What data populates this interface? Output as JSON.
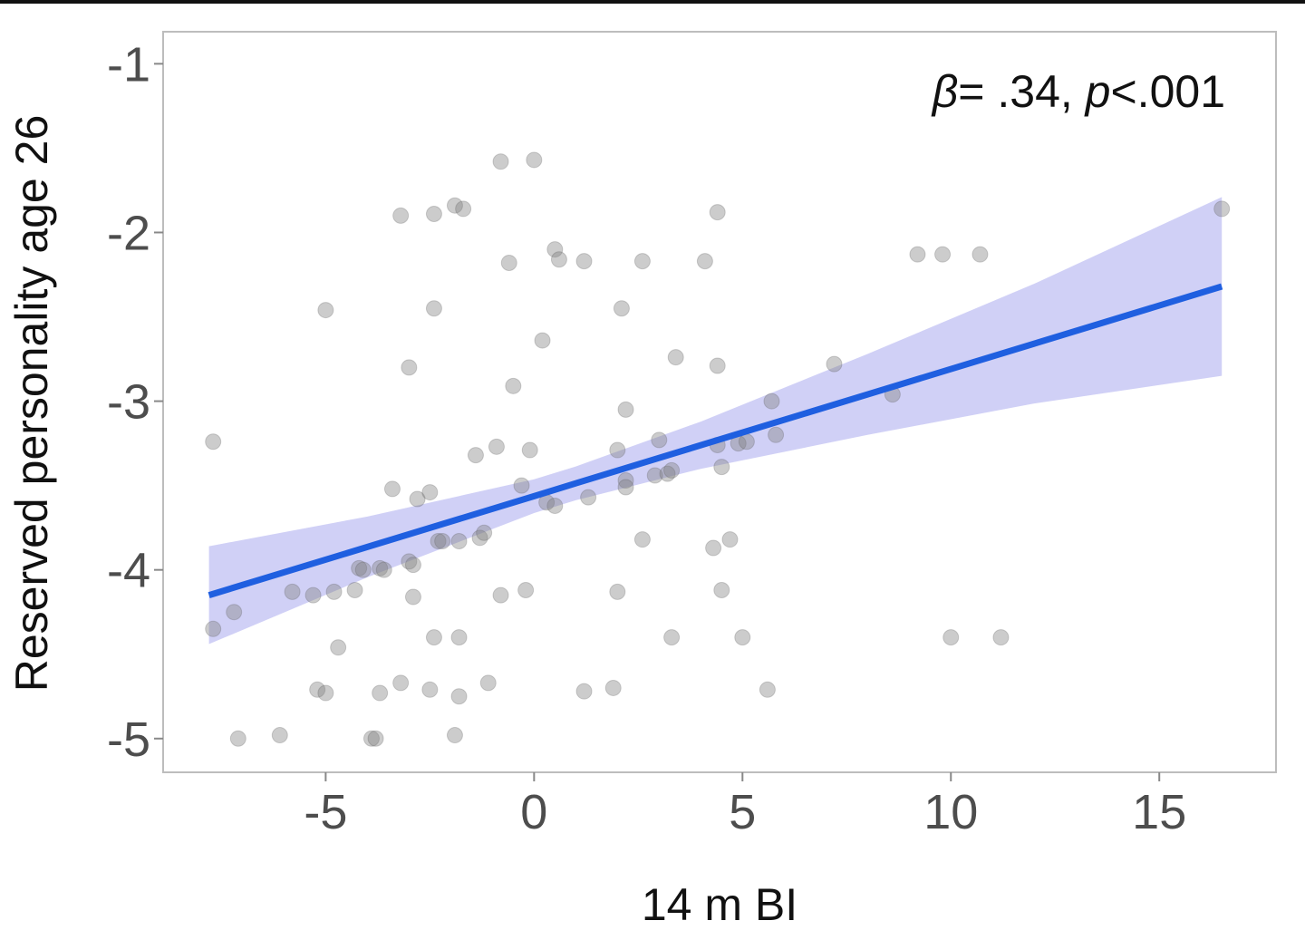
{
  "chart_data": {
    "type": "scatter",
    "title": "",
    "xlabel": "14 m BI",
    "ylabel": "Reserved personality age 26",
    "xlim": [
      -8.9,
      17.8
    ],
    "ylim": [
      -5.2,
      -0.81
    ],
    "xticks": [
      -5,
      0,
      5,
      10,
      15
    ],
    "xtick_labels": [
      "-5",
      "0",
      "5",
      "10",
      "15"
    ],
    "yticks": [
      -1,
      -2,
      -3,
      -4,
      -5
    ],
    "ytick_labels": [
      "-1",
      "-2",
      "-3",
      "-4",
      "-5"
    ],
    "grid": false,
    "annotation": {
      "beta_label": "β",
      "beta_text": "= .34, ",
      "p_label": "p",
      "p_text": "<.001"
    },
    "colors": {
      "points": "#808080",
      "line": "#1f5fe0",
      "ribbon": "#c8c8f5",
      "panel_border": "#bdbdbd"
    },
    "points": {
      "x": [
        -7.7,
        -7.7,
        -7.2,
        -7.1,
        -6.1,
        -5.8,
        -5.3,
        -5.0,
        -5.2,
        -5.0,
        -4.8,
        -4.7,
        -4.3,
        -4.2,
        -4.1,
        -3.7,
        -3.9,
        -3.8,
        -3.7,
        -3.6,
        -3.4,
        -3.2,
        -3.2,
        -3.0,
        -3.0,
        -2.9,
        -2.8,
        -2.9,
        -2.5,
        -2.4,
        -2.4,
        -2.5,
        -2.4,
        -2.3,
        -2.2,
        -1.9,
        -1.7,
        -1.8,
        -1.8,
        -1.8,
        -1.9,
        -1.4,
        -1.3,
        -1.2,
        -1.1,
        -0.9,
        -0.8,
        -0.8,
        -0.6,
        -0.5,
        -0.2,
        -0.3,
        -0.1,
        0.0,
        0.2,
        0.3,
        0.5,
        0.6,
        0.5,
        1.2,
        1.2,
        1.3,
        1.9,
        2.0,
        2.0,
        2.1,
        2.2,
        2.2,
        2.2,
        2.6,
        2.6,
        3.0,
        2.9,
        3.2,
        3.3,
        3.4,
        3.3,
        4.1,
        4.3,
        4.4,
        4.4,
        4.5,
        4.4,
        4.5,
        4.7,
        4.9,
        5.0,
        5.1,
        5.6,
        5.7,
        5.8,
        7.2,
        8.6,
        9.2,
        9.8,
        10.0,
        10.7,
        11.2,
        16.5
      ],
      "y": [
        -3.24,
        -4.35,
        -4.25,
        -5.0,
        -4.98,
        -4.13,
        -4.15,
        -2.46,
        -4.71,
        -4.73,
        -4.13,
        -4.46,
        -4.12,
        -3.99,
        -4.0,
        -4.73,
        -5.0,
        -5.0,
        -3.99,
        -4.0,
        -3.52,
        -1.9,
        -4.67,
        -2.8,
        -3.95,
        -4.16,
        -3.58,
        -3.97,
        -3.54,
        -2.45,
        -1.89,
        -4.71,
        -4.4,
        -3.83,
        -3.83,
        -1.84,
        -1.86,
        -3.83,
        -4.4,
        -4.75,
        -4.98,
        -3.32,
        -3.81,
        -3.78,
        -4.67,
        -3.27,
        -4.15,
        -1.58,
        -2.18,
        -2.91,
        -4.12,
        -3.5,
        -3.29,
        -1.57,
        -2.64,
        -3.6,
        -2.1,
        -2.16,
        -3.62,
        -2.17,
        -4.72,
        -3.57,
        -4.7,
        -4.13,
        -3.29,
        -2.45,
        -3.05,
        -3.47,
        -3.51,
        -2.17,
        -3.82,
        -3.23,
        -3.44,
        -3.43,
        -4.4,
        -2.74,
        -3.41,
        -2.17,
        -3.87,
        -2.79,
        -1.88,
        -4.12,
        -3.26,
        -3.39,
        -3.82,
        -3.25,
        -4.4,
        -3.24,
        -4.71,
        -3.0,
        -3.2,
        -2.78,
        -2.96,
        -2.13,
        -2.13,
        -4.4,
        -2.13,
        -4.4,
        -1.86
      ]
    },
    "fit": {
      "x": [
        -7.8,
        -4,
        0,
        1,
        4,
        8,
        12,
        16.5
      ],
      "y": [
        -4.15,
        -3.864,
        -3.563,
        -3.487,
        -3.261,
        -2.96,
        -2.659,
        -2.32
      ],
      "ci_lower": [
        -4.44,
        -4.044,
        -3.663,
        -3.587,
        -3.401,
        -3.2,
        -3.014,
        -2.85
      ],
      "ci_upper": [
        -3.86,
        -3.684,
        -3.463,
        -3.387,
        -3.121,
        -2.72,
        -2.304,
        -1.79
      ]
    }
  }
}
